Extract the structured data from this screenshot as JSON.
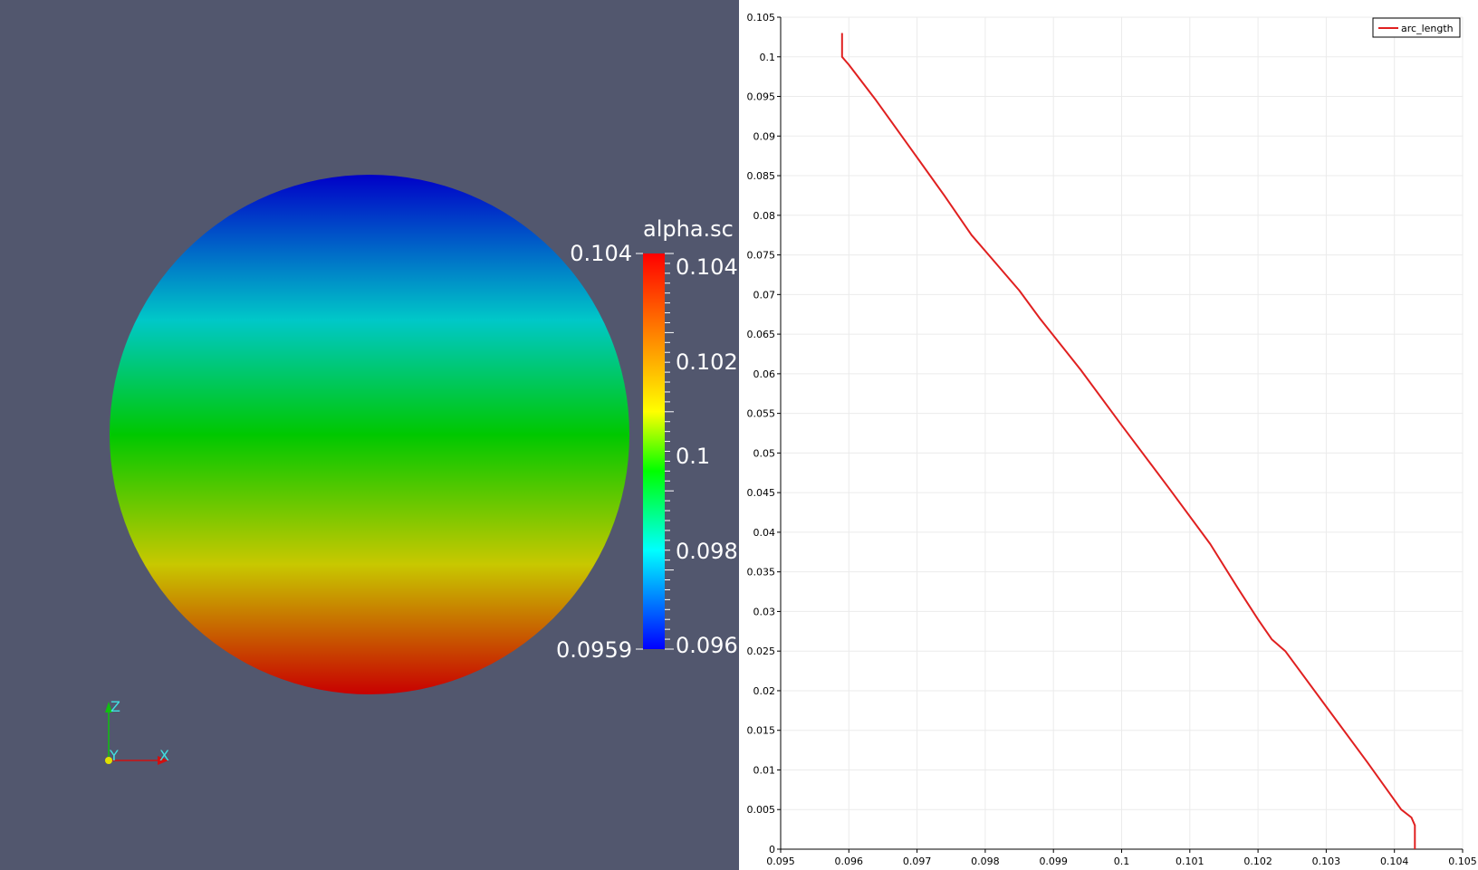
{
  "colors": {
    "background_3d": "#52576e",
    "plot_line": "#e02020",
    "axis_x": "#d01010",
    "axis_y": "#e0e000",
    "axis_z": "#10c010",
    "axis_label": "#40e0e0"
  },
  "render_view": {
    "sphere_gradient": [
      "#0000c8",
      "#00c8c8",
      "#00c800",
      "#c8c800",
      "#c80000"
    ],
    "colorbar": {
      "title": "alpha.sc",
      "range_max_label": "0.104",
      "range_min_label": "0.0959",
      "tick_labels": [
        "0.104",
        "0.102",
        "0.1",
        "0.098",
        "0.096"
      ],
      "gradient": [
        "#ff0000",
        "#ff8000",
        "#ffff00",
        "#00ff00",
        "#00ffff",
        "#0000ff"
      ]
    },
    "orientation_axes": {
      "x_label": "X",
      "y_label": "Y",
      "z_label": "Z",
      "icons": [
        "axis-x-arrow-icon",
        "axis-z-arrow-icon",
        "axis-y-dot-icon"
      ]
    }
  },
  "chart_data": {
    "type": "line",
    "title": "",
    "xlabel": "",
    "ylabel": "",
    "xlim": [
      0.095,
      0.105
    ],
    "ylim": [
      0,
      0.105
    ],
    "xticks": [
      "0.095",
      "0.096",
      "0.097",
      "0.098",
      "0.099",
      "0.1",
      "0.101",
      "0.102",
      "0.103",
      "0.104",
      "0.105"
    ],
    "yticks": [
      "0",
      "0.005",
      "0.01",
      "0.015",
      "0.02",
      "0.025",
      "0.03",
      "0.035",
      "0.04",
      "0.045",
      "0.05",
      "0.055",
      "0.06",
      "0.065",
      "0.07",
      "0.075",
      "0.08",
      "0.085",
      "0.09",
      "0.095",
      "0.1",
      "0.105"
    ],
    "grid": true,
    "legend": "top-right",
    "series": [
      {
        "name": "arc_length",
        "x": [
          0.1043,
          0.1043,
          0.10425,
          0.1041,
          0.1036,
          0.103,
          0.1024,
          0.1022,
          0.102,
          0.1017,
          0.1013,
          0.1007,
          0.1,
          0.0994,
          0.0988,
          0.0985,
          0.0981,
          0.0978,
          0.0974,
          0.0969,
          0.0964,
          0.096,
          0.09595,
          0.0959,
          0.0959
        ],
        "y": [
          0,
          0.003,
          0.004,
          0.005,
          0.011,
          0.018,
          0.025,
          0.0265,
          0.029,
          0.033,
          0.0385,
          0.0455,
          0.0535,
          0.0605,
          0.067,
          0.0705,
          0.0745,
          0.0775,
          0.0825,
          0.0885,
          0.0945,
          0.099,
          0.0995,
          0.1,
          0.103
        ]
      }
    ]
  }
}
